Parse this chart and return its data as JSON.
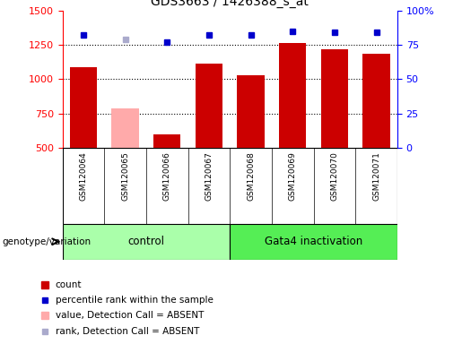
{
  "title": "GDS3663 / 1426388_s_at",
  "samples": [
    "GSM120064",
    "GSM120065",
    "GSM120066",
    "GSM120067",
    "GSM120068",
    "GSM120069",
    "GSM120070",
    "GSM120071"
  ],
  "bar_values": [
    1085,
    790,
    600,
    1115,
    1030,
    1260,
    1220,
    1185
  ],
  "bar_colors": [
    "#cc0000",
    "#ffaaaa",
    "#cc0000",
    "#cc0000",
    "#cc0000",
    "#cc0000",
    "#cc0000",
    "#cc0000"
  ],
  "dot_values": [
    82,
    79,
    77,
    82,
    82,
    85,
    84,
    84
  ],
  "dot_colors": [
    "#0000cc",
    "#aaaacc",
    "#0000cc",
    "#0000cc",
    "#0000cc",
    "#0000cc",
    "#0000cc",
    "#0000cc"
  ],
  "ylim_left": [
    500,
    1500
  ],
  "ylim_right": [
    0,
    100
  ],
  "yticks_left": [
    500,
    750,
    1000,
    1250,
    1500
  ],
  "yticks_right": [
    0,
    25,
    50,
    75,
    100
  ],
  "ytick_labels_right": [
    "0",
    "25",
    "50",
    "75",
    "100%"
  ],
  "dotted_lines": [
    750,
    1000,
    1250
  ],
  "plot_bg": "#ffffff",
  "label_bg": "#d4d4d4",
  "control_color": "#aaffaa",
  "gata4_color": "#55ee55",
  "genotype_label": "genotype/variation",
  "legend_items": [
    {
      "color": "#cc0000",
      "label": "count",
      "size": 6
    },
    {
      "color": "#0000cc",
      "label": "percentile rank within the sample",
      "size": 5
    },
    {
      "color": "#ffaaaa",
      "label": "value, Detection Call = ABSENT",
      "size": 6
    },
    {
      "color": "#aaaacc",
      "label": "rank, Detection Call = ABSENT",
      "size": 5
    }
  ]
}
